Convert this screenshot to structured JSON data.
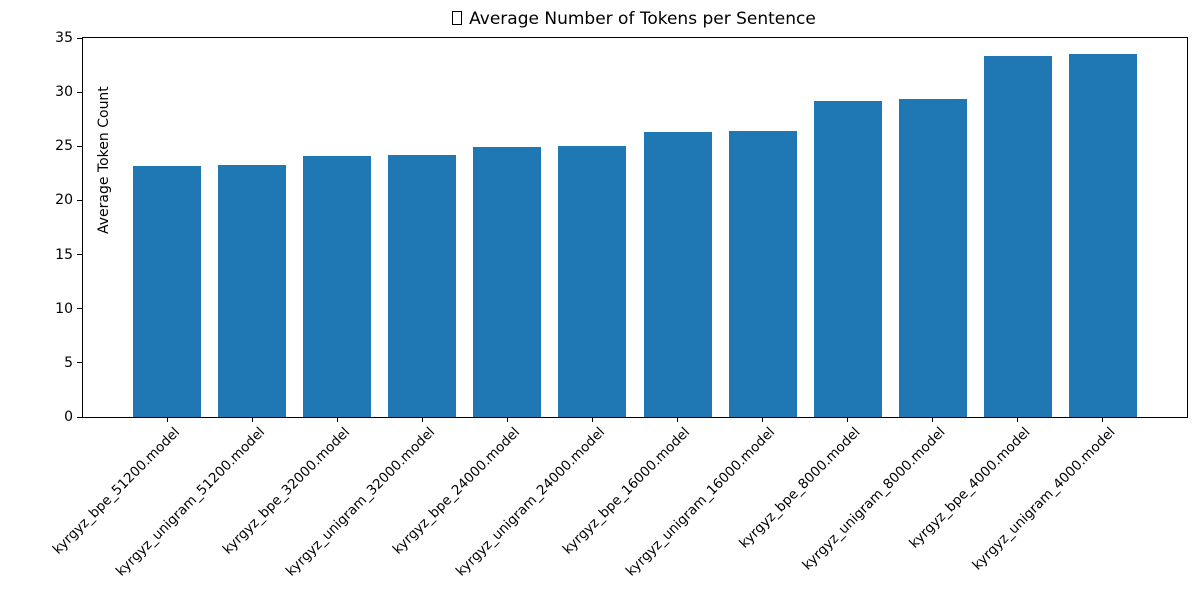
{
  "chart_data": {
    "type": "bar",
    "title": "Average Number of Tokens per Sentence",
    "title_prefix_icon": "missing-glyph-box",
    "categories": [
      "kyrgyz_bpe_51200.model",
      "kyrgyz_unigram_51200.model",
      "kyrgyz_bpe_32000.model",
      "kyrgyz_unigram_32000.model",
      "kyrgyz_bpe_24000.model",
      "kyrgyz_unigram_24000.model",
      "kyrgyz_bpe_16000.model",
      "kyrgyz_unigram_16000.model",
      "kyrgyz_bpe_8000.model",
      "kyrgyz_unigram_8000.model",
      "kyrgyz_bpe_4000.model",
      "kyrgyz_unigram_4000.model"
    ],
    "values": [
      23.2,
      23.3,
      24.1,
      24.2,
      24.9,
      25.0,
      26.3,
      26.4,
      29.2,
      29.4,
      33.3,
      33.5
    ],
    "xlabel": "",
    "ylabel": "Average Token Count",
    "yticks": [
      0,
      5,
      10,
      15,
      20,
      25,
      30,
      35
    ],
    "ylim": [
      0,
      35
    ],
    "x_tick_rotation_deg": 45,
    "grid": false,
    "legend_position": "none",
    "bar_color": "#1f77b4",
    "axis_color": "#000000",
    "text_color": "#000000",
    "background_color": "#ffffff"
  }
}
